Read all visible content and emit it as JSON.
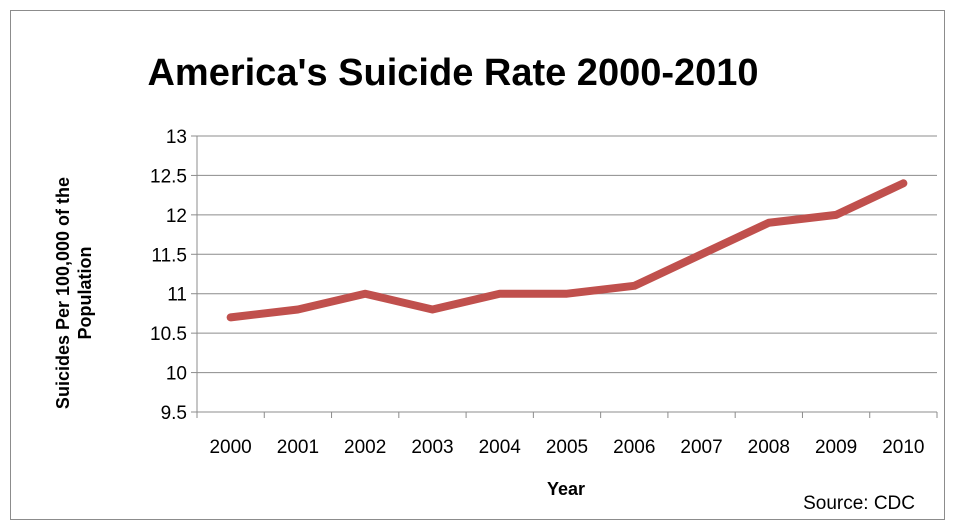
{
  "chart_data": {
    "type": "line",
    "title": "America's Suicide Rate 2000-2010",
    "xlabel": "Year",
    "ylabel_lines": [
      "Suicides Per 100,000 of the",
      "Population"
    ],
    "categories": [
      "2000",
      "2001",
      "2002",
      "2003",
      "2004",
      "2005",
      "2006",
      "2007",
      "2008",
      "2009",
      "2010"
    ],
    "series": [
      {
        "values": [
          10.7,
          10.8,
          11.0,
          10.8,
          11.0,
          11.0,
          11.1,
          11.5,
          11.9,
          12.0,
          12.4
        ],
        "color": "#c0504d"
      }
    ],
    "ylim": [
      9.5,
      13
    ],
    "yticks": [
      "9.5",
      "10",
      "10.5",
      "11",
      "11.5",
      "12",
      "12.5",
      "13"
    ],
    "grid": true,
    "gridColor": "#8c8c8c",
    "legend": "none",
    "source_note": "Source: CDC"
  }
}
